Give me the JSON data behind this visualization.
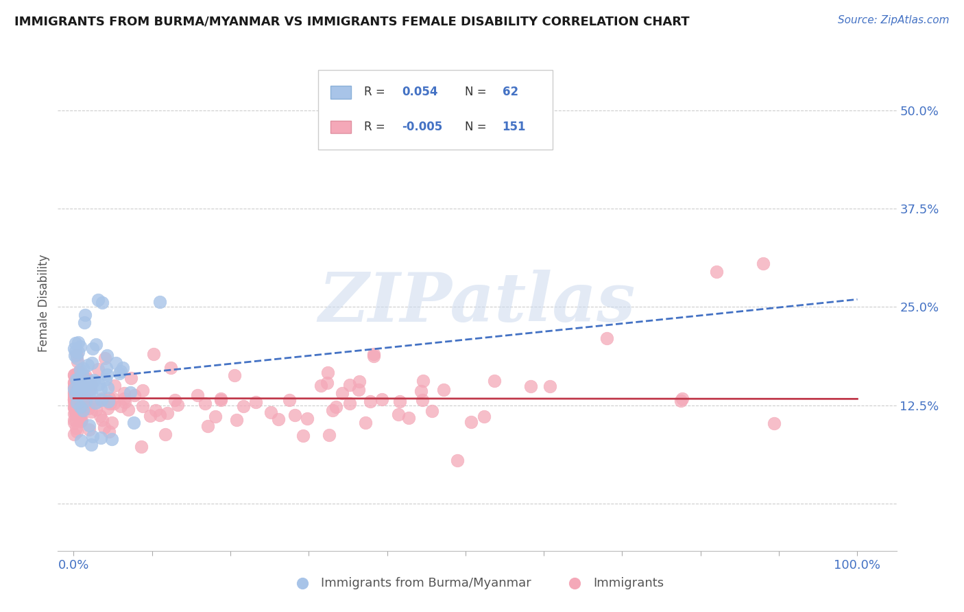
{
  "title": "IMMIGRANTS FROM BURMA/MYANMAR VS IMMIGRANTS FEMALE DISABILITY CORRELATION CHART",
  "source": "Source: ZipAtlas.com",
  "ylabel": "Female Disability",
  "legend_label1": "Immigrants from Burma/Myanmar",
  "legend_label2": "Immigrants",
  "r1": 0.054,
  "n1": 62,
  "r2": -0.005,
  "n2": 151,
  "color1": "#a8c4e8",
  "color2": "#f4a8b8",
  "line1_color": "#4472c4",
  "line2_color": "#c0384a",
  "bg_color": "#ffffff",
  "grid_color": "#cccccc",
  "title_color": "#1a1a1a",
  "x_ticks": [
    0.0,
    0.1,
    0.2,
    0.3,
    0.4,
    0.5,
    0.6,
    0.7,
    0.8,
    0.9,
    1.0
  ],
  "y_ticks": [
    0.0,
    0.125,
    0.25,
    0.375,
    0.5
  ],
  "xlim": [
    -0.02,
    1.05
  ],
  "ylim": [
    -0.06,
    0.57
  ],
  "figsize": [
    14.06,
    8.92
  ],
  "dpi": 100
}
